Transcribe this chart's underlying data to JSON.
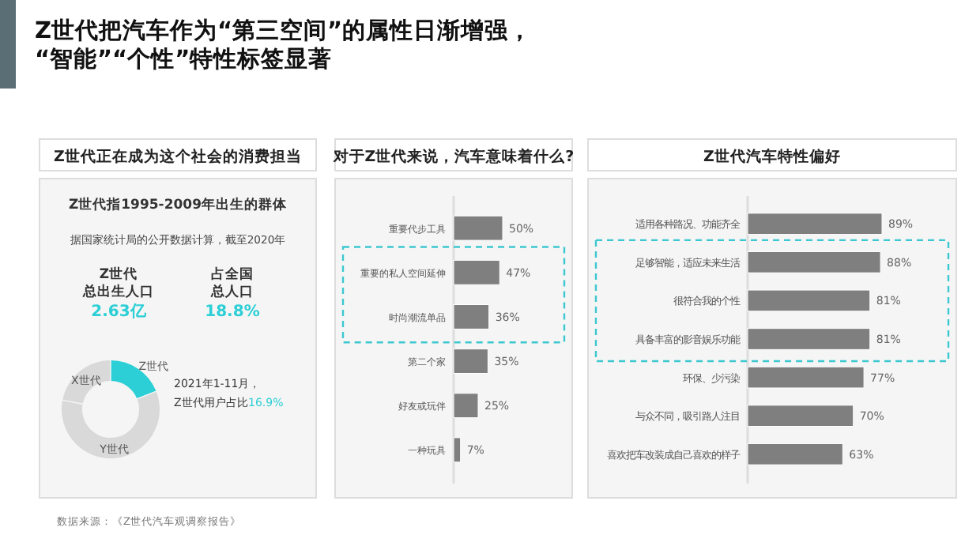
{
  "chart_data": [
    {
      "type": "other",
      "title": "Z世代把汽车作为“第三空间”的属性日渐增强，\n“智能”“个性”特性标签显著",
      "annotations": [
        "数据来源：《Z世代汽车观调察报告》"
      ]
    },
    {
      "type": "donut",
      "title": "Z世代正在成为这个社会的消费担当",
      "subtitle": "Z世代指1995-2009年出生的群体",
      "categories": [
        "Z世代",
        "Y世代",
        "X世代"
      ],
      "values": [
        19,
        59,
        22
      ],
      "colors": [
        "#2ccfd6",
        "#d9d9d9",
        "#d9d9d9"
      ],
      "annotations": [
        "据国家统计局的公开数据计算，截至2020年",
        "Z世代",
        "总出生人口",
        "2.63亿",
        "占全国",
        "总人口",
        "18.8%",
        "2021年1-11月，",
        "Z世代用户占比",
        "16.9%"
      ]
    },
    {
      "type": "bar",
      "orientation": "horizontal",
      "title": "对于Z世代来说，汽车意味着什么?",
      "categories": [
        "重要代步工具",
        "重要的私人空间延伸",
        "时尚潮流单品",
        "第二个家",
        "好友或玩伴",
        "一种玩具"
      ],
      "values": [
        50,
        47,
        36,
        35,
        25,
        7
      ],
      "color": "#7f7f7f",
      "value_labels": [
        "50%",
        "47%",
        "36%",
        "35%",
        "25%",
        "7%"
      ]
    },
    {
      "type": "bar",
      "orientation": "horizontal",
      "title": "Z世代汽车特性偏好",
      "categories": [
        "适用各种路况、功能齐全",
        "足够智能，适应未来生活",
        "很符合我的个性",
        "具备丰富的影音娱乐功能",
        "环保、少污染",
        "与众不同，吸引路人注目",
        "喜欢把车改装成自己喜欢的样子"
      ],
      "values": [
        89,
        88,
        81,
        81,
        77,
        70,
        63
      ],
      "color": "#7f7f7f",
      "value_labels": [
        "89%",
        "88%",
        "81%",
        "81%",
        "77%",
        "70%",
        "63%"
      ]
    }
  ]
}
